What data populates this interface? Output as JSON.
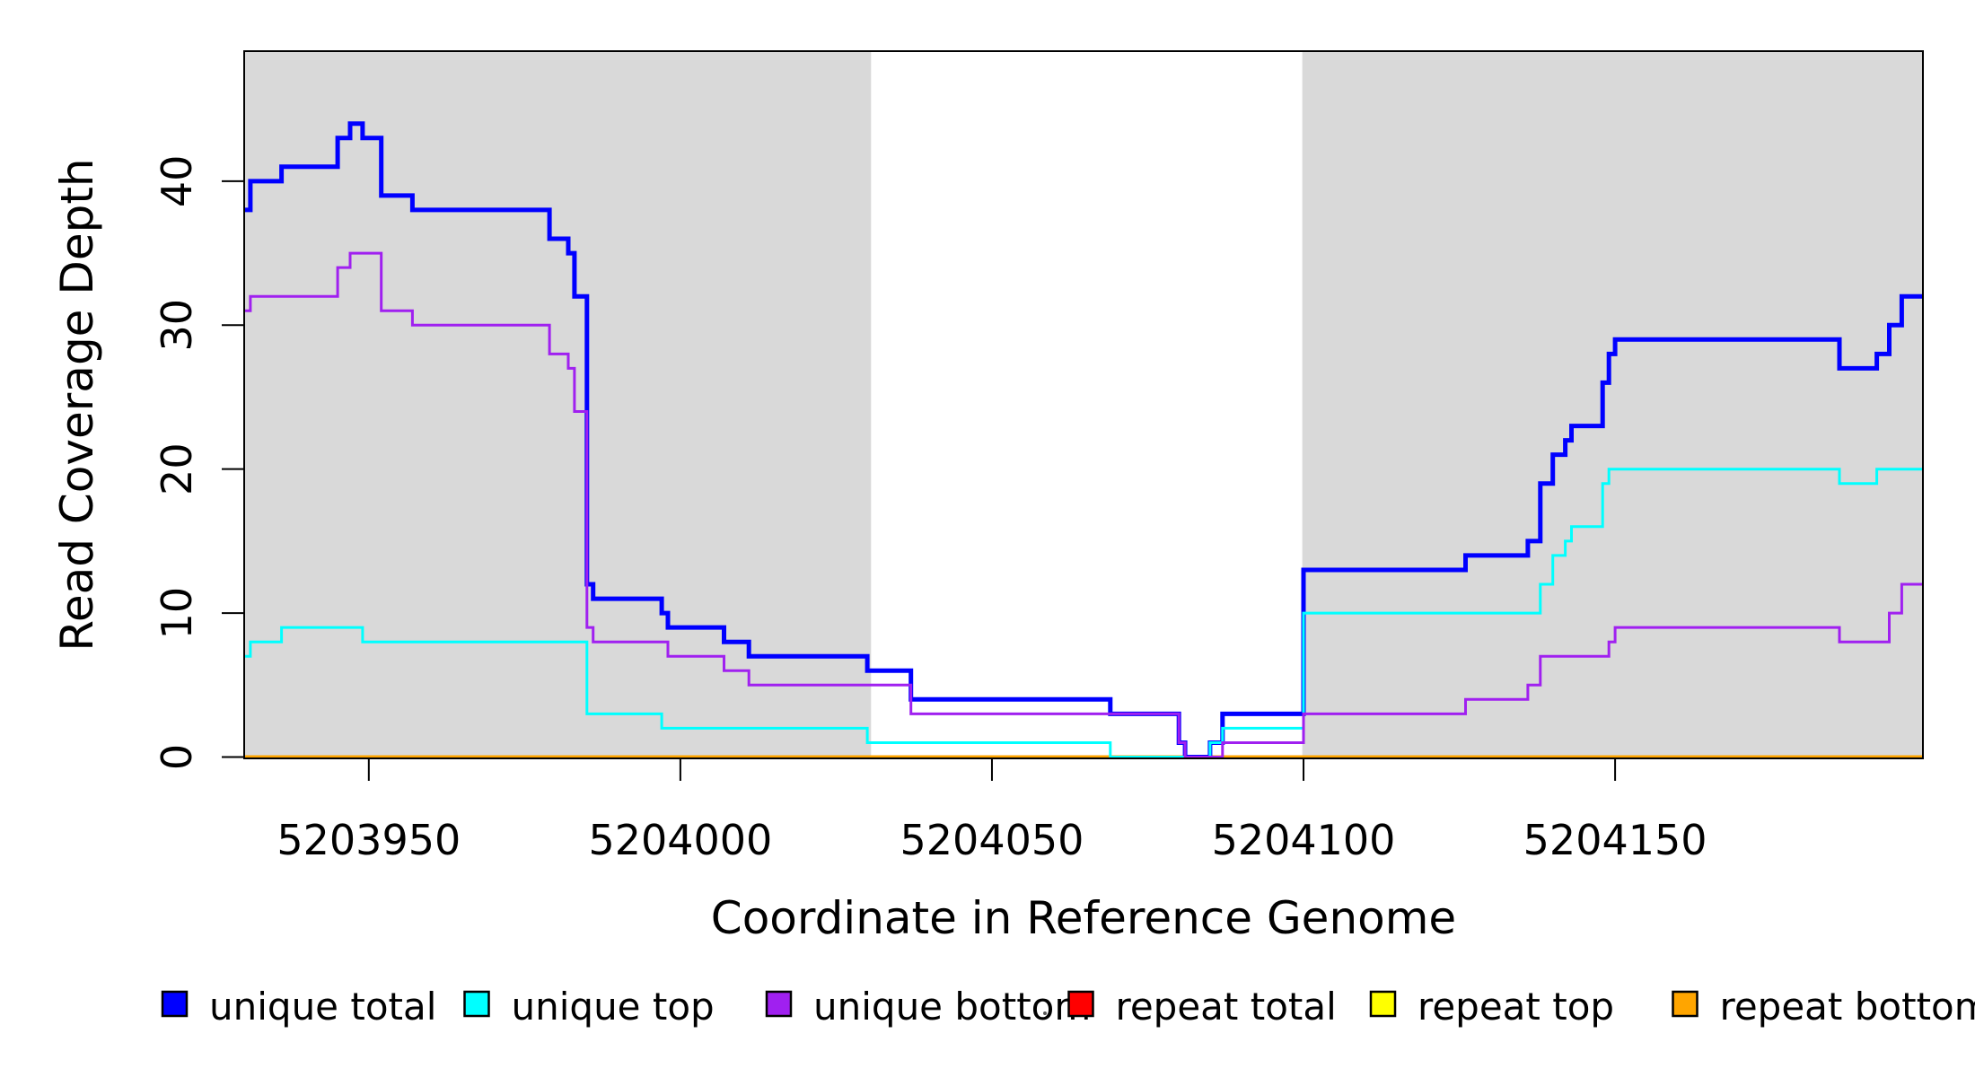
{
  "chart_data": {
    "type": "line",
    "subtype": "step",
    "xlabel": "Coordinate in Reference Genome",
    "ylabel": "Read Coverage Depth",
    "xlim": [
      5203930,
      5204199.4
    ],
    "ylim": [
      0,
      49
    ],
    "x_ticks": [
      5203950,
      5204000,
      5204050,
      5204100,
      5204150
    ],
    "y_ticks": [
      0,
      10,
      20,
      30,
      40
    ],
    "grid": false,
    "background_color": "#ffffff",
    "shade_color": "#d9d9d9",
    "axis_color": "#000000",
    "shaded_regions": [
      {
        "from": 5203930,
        "to": 5204030.6
      },
      {
        "from": 5204099.8,
        "to": 5204199.4
      }
    ],
    "legend_position": "bottom",
    "legend": [
      {
        "label": "unique total",
        "color": "#0000ff"
      },
      {
        "label": "unique top",
        "color": "#00ffff"
      },
      {
        "label": "unique bottom",
        "color": "#a020f0"
      },
      {
        "label": "repeat total",
        "color": "#ff0000"
      },
      {
        "label": "repeat top",
        "color": "#ffff00"
      },
      {
        "label": "repeat bottom",
        "color": "#ffa500"
      }
    ],
    "series": [
      {
        "name": "repeat total",
        "color": "#ff0000",
        "width": 3,
        "points": [
          [
            5203930,
            0
          ]
        ]
      },
      {
        "name": "repeat top",
        "color": "#ffff00",
        "width": 3,
        "points": [
          [
            5203930,
            0
          ]
        ]
      },
      {
        "name": "repeat bottom",
        "color": "#ffa500",
        "width": 4,
        "points": [
          [
            5203930,
            0
          ]
        ]
      },
      {
        "name": "unique total",
        "color": "#0000ff",
        "width": 5,
        "points": [
          [
            5203930,
            38
          ],
          [
            5203931,
            40
          ],
          [
            5203936,
            41
          ],
          [
            5203945,
            43
          ],
          [
            5203947,
            44
          ],
          [
            5203949,
            43
          ],
          [
            5203952,
            39
          ],
          [
            5203957,
            38
          ],
          [
            5203979,
            36
          ],
          [
            5203982,
            35
          ],
          [
            5203983,
            32
          ],
          [
            5203985,
            12
          ],
          [
            5203986,
            11
          ],
          [
            5203997,
            10
          ],
          [
            5203998,
            9
          ],
          [
            5204007,
            8
          ],
          [
            5204011,
            7
          ],
          [
            5204030,
            6
          ],
          [
            5204037,
            4
          ],
          [
            5204069,
            3
          ],
          [
            5204080,
            1
          ],
          [
            5204081,
            0
          ],
          [
            5204085,
            1
          ],
          [
            5204087,
            3
          ],
          [
            5204100,
            13
          ],
          [
            5204126,
            14
          ],
          [
            5204136,
            15
          ],
          [
            5204138,
            19
          ],
          [
            5204140,
            21
          ],
          [
            5204142,
            22
          ],
          [
            5204143,
            23
          ],
          [
            5204148,
            26
          ],
          [
            5204149,
            28
          ],
          [
            5204150,
            29
          ],
          [
            5204186,
            27
          ],
          [
            5204192,
            28
          ],
          [
            5204194,
            30
          ],
          [
            5204196,
            32
          ]
        ]
      },
      {
        "name": "unique top",
        "color": "#00ffff",
        "width": 3,
        "points": [
          [
            5203930,
            7
          ],
          [
            5203931,
            8
          ],
          [
            5203936,
            9
          ],
          [
            5203949,
            8
          ],
          [
            5203985,
            3
          ],
          [
            5203997,
            2
          ],
          [
            5204030,
            1
          ],
          [
            5204069,
            0
          ],
          [
            5204085,
            1
          ],
          [
            5204087,
            2
          ],
          [
            5204100,
            10
          ],
          [
            5204138,
            12
          ],
          [
            5204140,
            14
          ],
          [
            5204142,
            15
          ],
          [
            5204143,
            16
          ],
          [
            5204148,
            19
          ],
          [
            5204149,
            20
          ],
          [
            5204186,
            19
          ],
          [
            5204192,
            20
          ]
        ]
      },
      {
        "name": "unique bottom",
        "color": "#a020f0",
        "width": 3,
        "points": [
          [
            5203930,
            31
          ],
          [
            5203931,
            32
          ],
          [
            5203945,
            34
          ],
          [
            5203947,
            35
          ],
          [
            5203952,
            31
          ],
          [
            5203957,
            30
          ],
          [
            5203979,
            28
          ],
          [
            5203982,
            27
          ],
          [
            5203983,
            24
          ],
          [
            5203985,
            9
          ],
          [
            5203986,
            8
          ],
          [
            5203998,
            7
          ],
          [
            5204007,
            6
          ],
          [
            5204011,
            5
          ],
          [
            5204037,
            3
          ],
          [
            5204080,
            1
          ],
          [
            5204081,
            0
          ],
          [
            5204087,
            1
          ],
          [
            5204100,
            3
          ],
          [
            5204126,
            4
          ],
          [
            5204136,
            5
          ],
          [
            5204138,
            7
          ],
          [
            5204149,
            8
          ],
          [
            5204150,
            9
          ],
          [
            5204186,
            8
          ],
          [
            5204194,
            10
          ],
          [
            5204196,
            12
          ]
        ]
      }
    ]
  }
}
